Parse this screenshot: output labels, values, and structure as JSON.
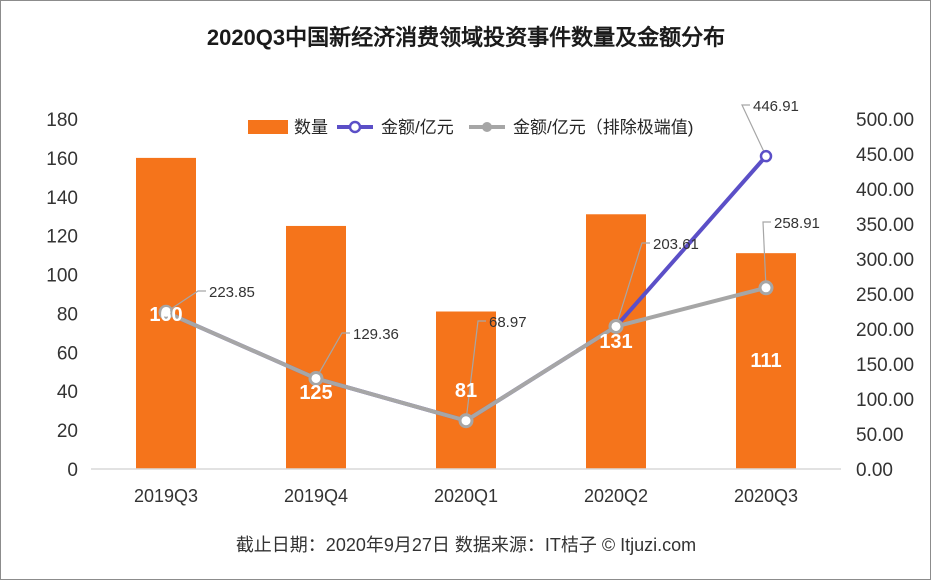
{
  "chart_data": {
    "type": "bar",
    "title": "2020Q3中国新经济消费领域投资事件数量及金额分布",
    "categories": [
      "2019Q3",
      "2019Q4",
      "2020Q1",
      "2020Q2",
      "2020Q3"
    ],
    "y_left": {
      "min": 0,
      "max": 180,
      "step": 20,
      "ticks": [
        "0",
        "20",
        "40",
        "60",
        "80",
        "100",
        "120",
        "140",
        "160",
        "180"
      ]
    },
    "y_right": {
      "min": 0,
      "max": 500,
      "step": 50,
      "ticks": [
        "0.00",
        "50.00",
        "100.00",
        "150.00",
        "200.00",
        "250.00",
        "300.00",
        "350.00",
        "400.00",
        "450.00",
        "500.00"
      ]
    },
    "series": [
      {
        "name": "数量",
        "type": "bar",
        "axis": "left",
        "color": "#f5741b",
        "values": [
          160,
          125,
          81,
          131,
          111
        ],
        "labels": [
          "160",
          "125",
          "81",
          "131",
          "111"
        ]
      },
      {
        "name": "金额/亿元",
        "type": "line",
        "axis": "right",
        "color": "#5b4fc7",
        "values": [
          223.85,
          129.36,
          68.97,
          203.61,
          446.91
        ],
        "labels": [
          "223.85",
          "129.36",
          "68.97",
          "203.61",
          "446.91"
        ]
      },
      {
        "name": "金额/亿元（排除极端值)",
        "type": "line",
        "axis": "right",
        "color": "#a6a6a6",
        "values": [
          223.85,
          129.36,
          68.97,
          203.61,
          258.91
        ],
        "labels": [
          "223.85",
          "129.36",
          "68.97",
          "203.61",
          "258.91"
        ]
      }
    ],
    "legend": {
      "position": "top",
      "items": [
        {
          "label": "数量",
          "marker": "bar",
          "color": "#f5741b"
        },
        {
          "label": "金额/亿元",
          "marker": "line",
          "color": "#5b4fc7"
        },
        {
          "label": "金额/亿元（排除极端值)",
          "marker": "line",
          "color": "#a6a6a6"
        }
      ]
    },
    "grid": false
  },
  "footer": "截止日期：2020年9月27日     数据来源：IT桔子 © Itjuzi.com"
}
